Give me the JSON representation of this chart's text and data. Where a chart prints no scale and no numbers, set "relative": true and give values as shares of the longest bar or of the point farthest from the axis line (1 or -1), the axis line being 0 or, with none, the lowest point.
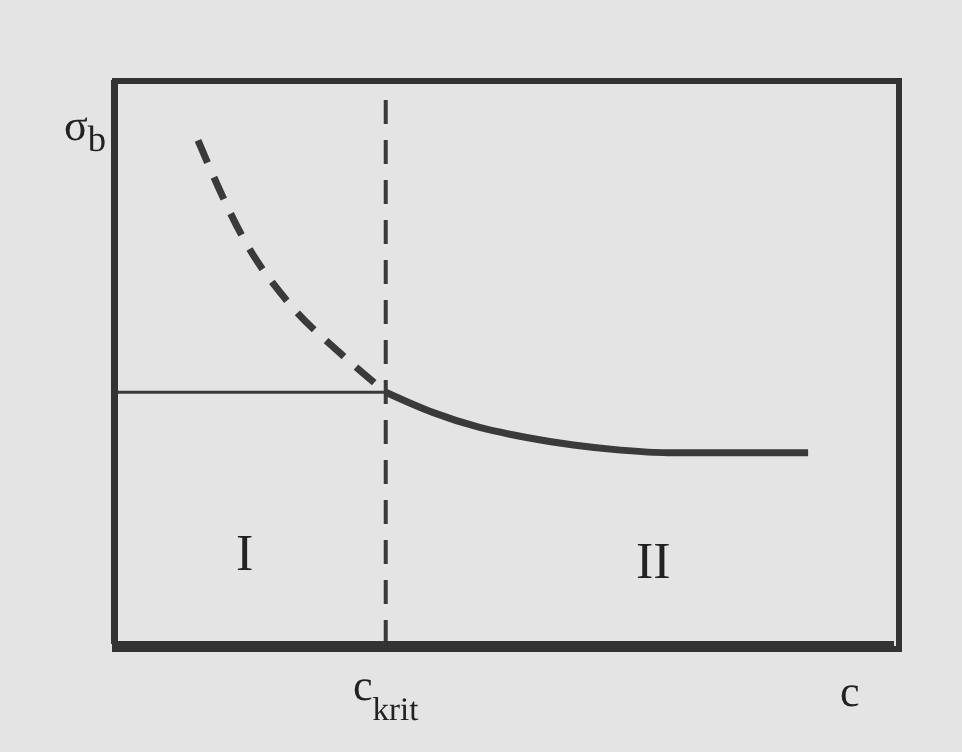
{
  "chart_data": {
    "type": "line",
    "relative": true,
    "ylabel": "σ$_{b}$",
    "xlabel": "c",
    "categories": [
      null,
      null,
      null,
      null,
      null,
      null,
      null,
      null,
      null,
      null,
      null,
      null,
      null,
      null
    ],
    "series": [
      {
        "color": "#3a3a3a",
        "line_style": "dashed",
        "values": [
          1,
          0.8,
          0.67,
          0.58,
          0.5,
          null,
          null,
          null,
          null,
          null,
          null,
          null,
          null,
          null
        ]
      },
      {
        "color": "#3a3a3a",
        "line_style": "solid",
        "values": [
          null,
          null,
          null,
          null,
          0.5,
          0.46,
          0.43,
          0.41,
          0.395,
          0.385,
          0.38,
          0.38,
          0.38,
          0.38
        ]
      }
    ],
    "ref_lines": [
      {
        "axis": "x",
        "label": "c$_{krit}$",
        "line_style": "dashed",
        "color": "#3a3a3a"
      },
      {
        "axis": "y",
        "value": 0.5,
        "color": "#3a3a3a",
        "line_style": "solid"
      }
    ],
    "annotations": [
      "I",
      "II"
    ],
    "grid": false,
    "legend": false,
    "marker": "none"
  }
}
